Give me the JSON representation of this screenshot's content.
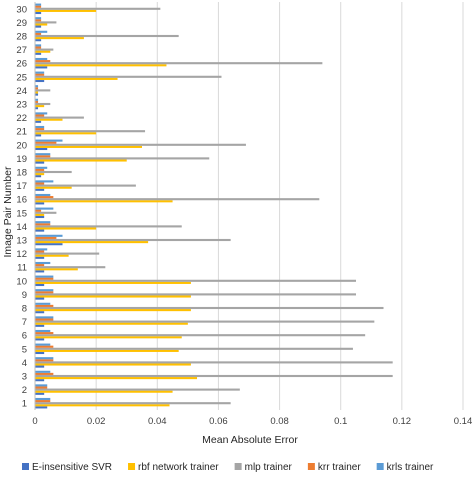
{
  "chart_data": {
    "type": "bar",
    "orientation": "horizontal",
    "xlabel": "Mean Absolute Error",
    "ylabel": "Image Pair Number",
    "xlim": [
      0,
      0.14
    ],
    "x_ticks": [
      "0",
      "0.02",
      "0.04",
      "0.06",
      "0.08",
      "0.1",
      "0.12",
      "0.14"
    ],
    "grid": true,
    "legend_position": "bottom",
    "categories": [
      "1",
      "2",
      "3",
      "4",
      "5",
      "6",
      "7",
      "8",
      "9",
      "10",
      "11",
      "12",
      "13",
      "14",
      "15",
      "16",
      "17",
      "18",
      "19",
      "20",
      "21",
      "22",
      "23",
      "24",
      "25",
      "26",
      "27",
      "28",
      "29",
      "30"
    ],
    "series": [
      {
        "name": "E-insensitive SVR",
        "color": "#4472c4",
        "values": [
          0.004,
          0.003,
          0.003,
          0.003,
          0.003,
          0.003,
          0.003,
          0.003,
          0.003,
          0.003,
          0.003,
          0.003,
          0.009,
          0.003,
          0.003,
          0.003,
          0.003,
          0.002,
          0.003,
          0.004,
          0.002,
          0.002,
          0.001,
          0.001,
          0.003,
          0.004,
          0.002,
          0.002,
          0.002,
          0.002
        ]
      },
      {
        "name": "rbf network trainer",
        "color": "#ffc000",
        "values": [
          0.044,
          0.045,
          0.053,
          0.051,
          0.047,
          0.048,
          0.05,
          0.051,
          0.051,
          0.051,
          0.014,
          0.011,
          0.037,
          0.02,
          0.003,
          0.045,
          0.012,
          0.003,
          0.03,
          0.035,
          0.02,
          0.009,
          0.003,
          0.001,
          0.027,
          0.043,
          0.005,
          0.016,
          0.004,
          0.02
        ]
      },
      {
        "name": "mlp trainer",
        "color": "#a5a5a5",
        "values": [
          0.064,
          0.067,
          0.117,
          0.117,
          0.104,
          0.108,
          0.111,
          0.114,
          0.105,
          0.105,
          0.023,
          0.021,
          0.064,
          0.048,
          0.007,
          0.093,
          0.033,
          0.012,
          0.057,
          0.069,
          0.036,
          0.016,
          0.005,
          0.005,
          0.061,
          0.094,
          0.006,
          0.047,
          0.007,
          0.041
        ]
      },
      {
        "name": "krr trainer",
        "color": "#ed7d31",
        "values": [
          0.005,
          0.004,
          0.006,
          0.006,
          0.006,
          0.006,
          0.006,
          0.006,
          0.006,
          0.006,
          0.003,
          0.003,
          0.007,
          0.005,
          0.002,
          0.006,
          0.003,
          0.003,
          0.005,
          0.007,
          0.003,
          0.003,
          0.001,
          0.001,
          0.003,
          0.005,
          0.002,
          0.002,
          0.002,
          0.002
        ]
      },
      {
        "name": "krls trainer",
        "color": "#5b9bd5",
        "values": [
          0.005,
          0.004,
          0.005,
          0.006,
          0.005,
          0.005,
          0.006,
          0.005,
          0.006,
          0.006,
          0.005,
          0.004,
          0.009,
          0.005,
          0.006,
          0.005,
          0.006,
          0.004,
          0.005,
          0.009,
          0.003,
          0.004,
          0.001,
          0.001,
          0.003,
          0.004,
          0.002,
          0.004,
          0.002,
          0.002
        ]
      }
    ]
  }
}
